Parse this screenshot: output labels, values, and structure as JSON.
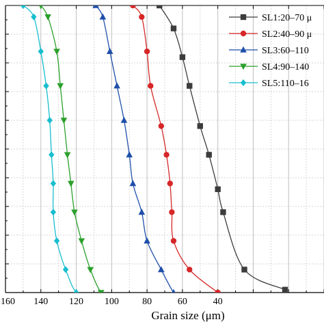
{
  "chart_data": {
    "type": "line",
    "xlabel": "Grain size (μm)",
    "ylabel": "",
    "xlim": [
      160,
      -20
    ],
    "ylim": [
      0,
      100
    ],
    "x_ticks": [
      160,
      140,
      120,
      100,
      80,
      60,
      40
    ],
    "x_tick_labels": [
      "160",
      "140",
      "120",
      "100",
      "80",
      "60",
      "40"
    ],
    "grid": true,
    "legend_position": "top-right",
    "series": [
      {
        "name": "SL1:20–70 μ",
        "color": "#3c3c3c",
        "marker": "square",
        "x": [
          73,
          65,
          60,
          56,
          50,
          45,
          40,
          37,
          25,
          2
        ],
        "y": [
          100,
          92,
          82,
          72,
          58,
          48,
          36,
          28,
          8,
          1
        ]
      },
      {
        "name": "SL2:40–90 μ",
        "color": "#d62728",
        "marker": "circle",
        "x": [
          88,
          83,
          80,
          78,
          72,
          69,
          67,
          66,
          65,
          56,
          40
        ],
        "y": [
          100,
          96,
          84,
          72,
          58,
          48,
          38,
          28,
          18,
          8,
          0
        ]
      },
      {
        "name": "SL3:60–110",
        "color": "#1f4faa",
        "marker": "triangle-up",
        "x": [
          109,
          105,
          101,
          97,
          93,
          90,
          88,
          83,
          80,
          72,
          65,
          61
        ],
        "y": [
          100,
          96,
          84,
          72,
          60,
          48,
          38,
          28,
          18,
          8,
          0,
          -2
        ]
      },
      {
        "name": "SL4:90–140",
        "color": "#2ca02c",
        "marker": "triangle-down",
        "x": [
          140,
          136,
          131,
          129,
          127,
          125,
          123,
          121,
          117,
          112,
          106,
          100,
          92
        ],
        "y": [
          100,
          96,
          84,
          72,
          60,
          48,
          38,
          28,
          18,
          8,
          0,
          -2,
          -3
        ]
      },
      {
        "name": "SL5:110–16",
        "color": "#17becf",
        "marker": "diamond",
        "x": [
          150,
          144,
          140,
          137,
          135,
          134,
          133,
          133,
          131,
          126,
          120,
          112
        ],
        "y": [
          100,
          96,
          84,
          72,
          60,
          48,
          38,
          28,
          18,
          8,
          0,
          -2
        ]
      }
    ]
  }
}
